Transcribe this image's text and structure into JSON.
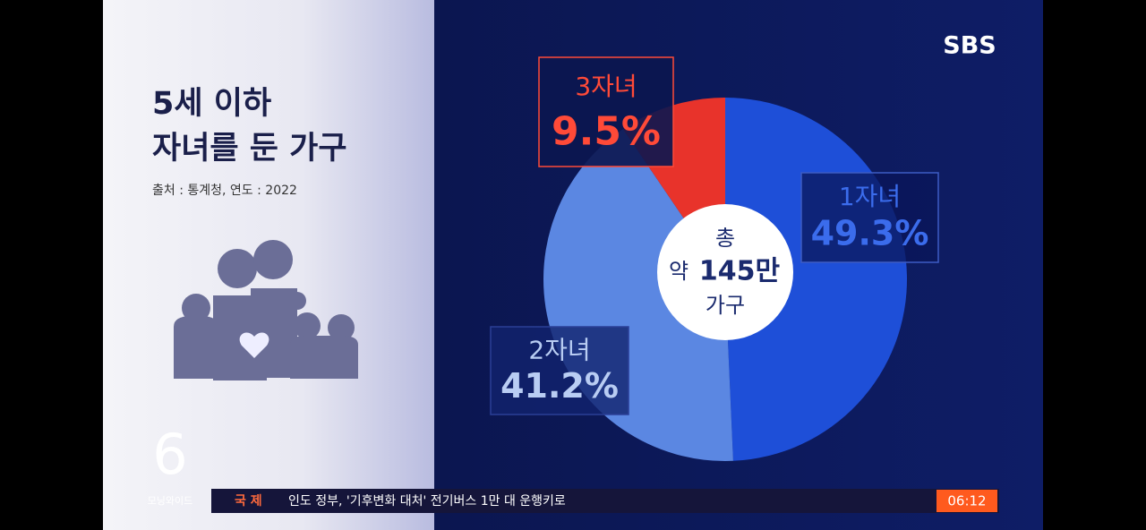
{
  "broadcaster": "SBS",
  "panel": {
    "title_lines": [
      "5세 이하",
      "자녀를 둔 가구"
    ],
    "source": "출처 : 통계청, 연도 : 2022"
  },
  "chart_data": {
    "type": "pie",
    "categories": [
      "1자녀",
      "2자녀",
      "3자녀"
    ],
    "values": [
      49.3,
      41.2,
      9.5
    ],
    "value_labels": [
      "49.3%",
      "41.2%",
      "9.5%"
    ],
    "colors": [
      "#1e4fd8",
      "#5b87e2",
      "#e8332b"
    ],
    "center_text": [
      "총",
      "약",
      "145만",
      "가구"
    ]
  },
  "ticker": {
    "program_number": "6",
    "program": "모닝와이드",
    "section": "국 제",
    "headline": "인도 정부, '기후변화 대처' 전기버스 1만 대 운행키로",
    "time": "06:12"
  }
}
